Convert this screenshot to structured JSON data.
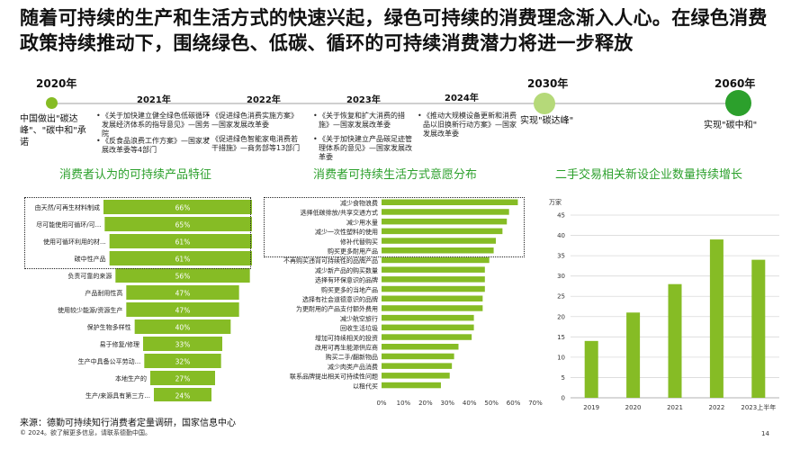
{
  "title": "随着可持续的生产和生活方式的快速兴起，绿色可持续的消费理念渐入人心。在绿色消费政策持续推动下，围绕绿色、低碳、循环的可持续消费潜力将进一步释放",
  "timeline": {
    "y2020": "2020年",
    "y2020_text": "中国做出\"碳达峰\"、\"碳中和\"承诺",
    "y2021": "2021年",
    "y2021_b1": "《关于加快建立健全绿色低碳循环发展经济体系的指导意见》—国务院",
    "y2021_b2": "《反食品浪费工作方案》—国家发展改革委等4部门",
    "y2022": "2022年",
    "y2022_b1": "《促进绿色消费实施方案》—国家发展改革委",
    "y2022_b2": "《促进绿色智能家电消费若干措施》—商务部等13部门",
    "y2023": "2023年",
    "y2023_b1": "《关于恢复和扩大消费的措施》—国家发展改革委",
    "y2023_b2": "《关于加快建立产品碳足迹管理体系的意见》—国家发展改革委",
    "y2024": "2024年",
    "y2024_b1": "《推动大规模设备更新和消费品以旧换新行动方案》—国家发展改革委",
    "y2030": "2030年",
    "y2030_text": "实现\"碳达峰\"",
    "y2060": "2060年",
    "y2060_text": "实现\"碳中和\""
  },
  "sections": {
    "left_title": "消费者认为的可持续产品特征",
    "mid_title": "消费者可持续生活方式意愿分布",
    "right_title": "二手交易相关新设企业数量持续增长"
  },
  "colors": {
    "green": "#86bc25",
    "dark_green": "#2ca02c",
    "light_green": "#b5d979"
  },
  "chart_data": [
    {
      "type": "bar",
      "orientation": "horizontal-funnel",
      "title": "消费者认为的可持续产品特征",
      "categories": [
        "由天然/可再生材料制成",
        "尽可能使用可循环/可...",
        "使用可循环利用的材...",
        "碳中性产品",
        "负责可靠的来源",
        "产品耐用性高",
        "使用较少能源/资源生产",
        "保护生物多样性",
        "易于修复/修理",
        "生产中具备公平劳动...",
        "本地生产的",
        "生产/来源具有第三方..."
      ],
      "values": [
        66,
        65,
        61,
        61,
        56,
        47,
        47,
        40,
        33,
        32,
        27,
        24
      ],
      "labels": [
        "66%",
        "65%",
        "61%",
        "61%",
        "56%",
        "47%",
        "47%",
        "40%",
        "33%",
        "32%",
        "27%",
        "24%"
      ]
    },
    {
      "type": "bar",
      "orientation": "horizontal",
      "title": "消费者可持续生活方式意愿分布",
      "categories": [
        "减少食物浪费",
        "选择低碳排放/共享交通方式",
        "减少用水量",
        "减少一次性塑料的使用",
        "修补代替购买",
        "购买更多耐用产品",
        "不再购买违背可持续性的品牌产品",
        "减少新产品的购买数量",
        "选择有环保意识的品牌",
        "购买更多的当地产品",
        "选择有社会道德意识的品牌",
        "为更耐用的产品支付额外费用",
        "减少航空旅行",
        "回收生活垃圾",
        "增加可持续相关的投资",
        "改用可再生能源供应商",
        "购买二手/翻新物品",
        "减少肉类产品消费",
        "联系品牌提出相关可持续性问题",
        "以租代买"
      ],
      "values": [
        62,
        58,
        57,
        55,
        52,
        51,
        49,
        47,
        47,
        47,
        46,
        46,
        42,
        42,
        41,
        35,
        33,
        32,
        31,
        27
      ],
      "xticks": [
        "0%",
        "10%",
        "20%",
        "30%",
        "40%",
        "50%",
        "60%",
        "70%"
      ],
      "xlim": [
        0,
        70
      ]
    },
    {
      "type": "bar",
      "title": "二手交易相关新设企业数量持续增长",
      "ylabel": "万家",
      "categories": [
        "2019",
        "2020",
        "2021",
        "2022",
        "2023上半年"
      ],
      "values": [
        14,
        21,
        28,
        39,
        34
      ],
      "yticks": [
        "0",
        "5",
        "10",
        "15",
        "20",
        "25",
        "30",
        "35",
        "40",
        "45"
      ],
      "ylim": [
        0,
        45
      ]
    }
  ],
  "footer": {
    "source": "来源：德勤可持续知行消费者定量调研，国家信息中心",
    "copyright": "© 2024。欲了解更多信息，请联系德勤中国。",
    "page": "14"
  }
}
